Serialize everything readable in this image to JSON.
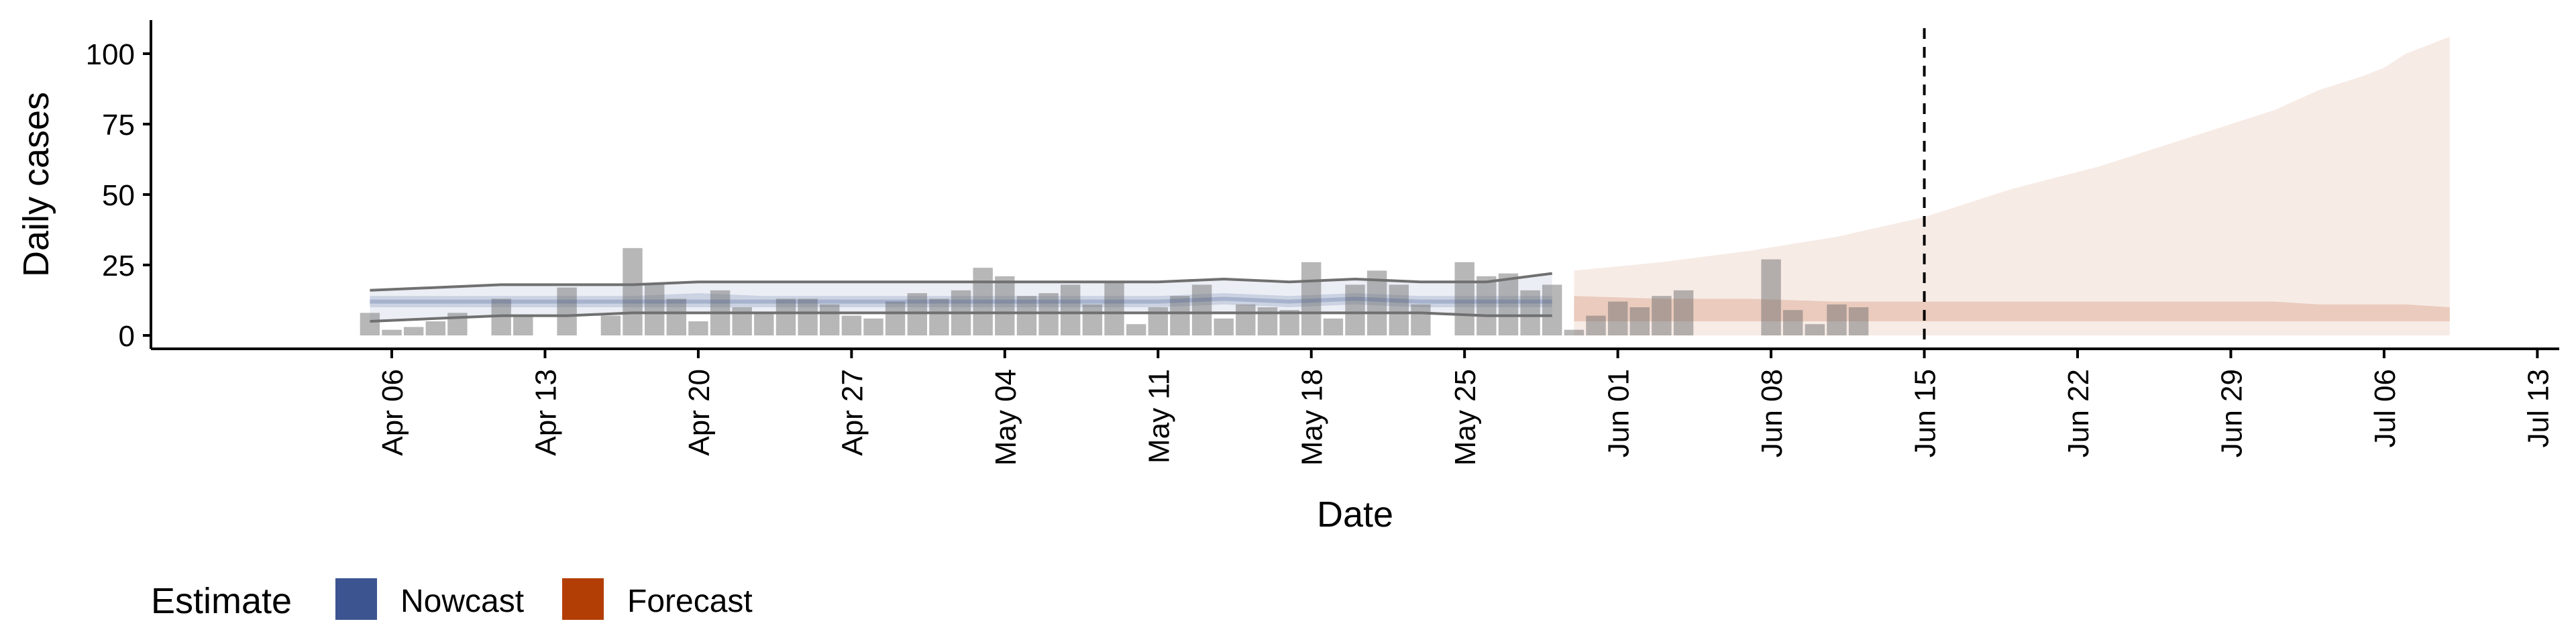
{
  "chart_data": {
    "type": "bar",
    "xlabel": "Date",
    "ylabel": "Daily cases",
    "ylim": [
      0,
      110
    ],
    "yticks": [
      0,
      25,
      50,
      75,
      100
    ],
    "x_tick_labels": [
      "Apr 06",
      "Apr 13",
      "Apr 20",
      "Apr 27",
      "May 04",
      "May 11",
      "May 18",
      "May 25",
      "Jun 01",
      "Jun 08",
      "Jun 15",
      "Jun 22",
      "Jun 29",
      "Jul 06",
      "Jul 13"
    ],
    "x_tick_dates": [
      "2020-04-06",
      "2020-04-13",
      "2020-04-20",
      "2020-04-27",
      "2020-05-04",
      "2020-05-11",
      "2020-05-18",
      "2020-05-25",
      "2020-06-01",
      "2020-06-08",
      "2020-06-15",
      "2020-06-22",
      "2020-06-29",
      "2020-07-06",
      "2020-07-13"
    ],
    "xlim": [
      "2020-03-26",
      "2020-07-14"
    ],
    "forecast_date": "2020-06-15",
    "cases": {
      "dates": [
        "2020-04-05",
        "2020-04-06",
        "2020-04-07",
        "2020-04-08",
        "2020-04-09",
        "2020-04-10",
        "2020-04-11",
        "2020-04-12",
        "2020-04-13",
        "2020-04-14",
        "2020-04-15",
        "2020-04-16",
        "2020-04-17",
        "2020-04-18",
        "2020-04-19",
        "2020-04-20",
        "2020-04-21",
        "2020-04-22",
        "2020-04-23",
        "2020-04-24",
        "2020-04-25",
        "2020-04-26",
        "2020-04-27",
        "2020-04-28",
        "2020-04-29",
        "2020-04-30",
        "2020-05-01",
        "2020-05-02",
        "2020-05-03",
        "2020-05-04",
        "2020-05-05",
        "2020-05-06",
        "2020-05-07",
        "2020-05-08",
        "2020-05-09",
        "2020-05-10",
        "2020-05-11",
        "2020-05-12",
        "2020-05-13",
        "2020-05-14",
        "2020-05-15",
        "2020-05-16",
        "2020-05-17",
        "2020-05-18",
        "2020-05-19",
        "2020-05-20",
        "2020-05-21",
        "2020-05-22",
        "2020-05-23",
        "2020-05-24",
        "2020-05-25",
        "2020-05-26",
        "2020-05-27",
        "2020-05-28",
        "2020-05-29",
        "2020-05-30",
        "2020-05-31",
        "2020-06-01",
        "2020-06-02",
        "2020-06-03",
        "2020-06-04",
        "2020-06-05",
        "2020-06-06",
        "2020-06-07",
        "2020-06-08",
        "2020-06-09",
        "2020-06-10",
        "2020-06-11",
        "2020-06-12"
      ],
      "values": [
        8,
        2,
        3,
        5,
        8,
        0,
        13,
        7,
        0,
        17,
        0,
        7,
        31,
        18,
        13,
        5,
        16,
        10,
        8,
        13,
        13,
        11,
        7,
        6,
        12,
        15,
        13,
        16,
        24,
        21,
        14,
        15,
        18,
        11,
        19,
        4,
        10,
        14,
        18,
        6,
        11,
        10,
        9,
        26,
        6,
        18,
        23,
        18,
        11,
        0,
        26,
        21,
        22,
        16,
        18,
        2,
        7,
        12,
        10,
        14,
        16,
        0,
        0,
        0,
        27,
        9,
        4,
        11,
        10
      ]
    },
    "series": [
      {
        "name": "Nowcast",
        "color": "#3c5591",
        "dates": [
          "2020-04-05",
          "2020-04-08",
          "2020-04-11",
          "2020-04-14",
          "2020-04-17",
          "2020-04-20",
          "2020-04-23",
          "2020-04-26",
          "2020-04-29",
          "2020-05-02",
          "2020-05-05",
          "2020-05-08",
          "2020-05-11",
          "2020-05-14",
          "2020-05-17",
          "2020-05-20",
          "2020-05-23",
          "2020-05-26",
          "2020-05-29"
        ],
        "median": [
          12,
          12,
          12,
          12,
          12,
          12,
          12,
          12,
          12,
          12,
          12,
          12,
          12,
          13,
          12,
          13,
          12,
          12,
          12
        ],
        "lower_50": [
          10,
          10,
          10,
          10,
          10,
          10,
          10,
          10,
          10,
          10,
          10,
          10,
          10,
          11,
          10,
          11,
          10,
          10,
          10
        ],
        "upper_50": [
          14,
          14,
          14,
          14,
          14,
          15,
          14,
          14,
          14,
          14,
          14,
          14,
          14,
          15,
          14,
          15,
          14,
          14,
          14
        ],
        "lower_90": [
          5,
          6,
          7,
          7,
          8,
          8,
          8,
          8,
          8,
          8,
          8,
          8,
          8,
          8,
          8,
          8,
          8,
          7,
          7
        ],
        "upper_90": [
          16,
          17,
          18,
          18,
          18,
          19,
          19,
          19,
          19,
          19,
          19,
          19,
          19,
          20,
          19,
          20,
          19,
          19,
          22
        ]
      },
      {
        "name": "Forecast",
        "color": "#b33e05",
        "dates": [
          "2020-05-30",
          "2020-06-03",
          "2020-06-07",
          "2020-06-11",
          "2020-06-15",
          "2020-06-19",
          "2020-06-23",
          "2020-06-27",
          "2020-07-01",
          "2020-07-03",
          "2020-07-05",
          "2020-07-06",
          "2020-07-07",
          "2020-07-09"
        ],
        "lower_50": [
          5,
          5,
          5,
          5,
          5,
          5,
          5,
          5,
          5,
          5,
          5,
          5,
          5,
          5
        ],
        "upper_50": [
          14,
          13,
          13,
          12,
          12,
          12,
          12,
          12,
          12,
          11,
          11,
          11,
          11,
          10
        ],
        "lower_90": [
          0,
          0,
          0,
          0,
          0,
          0,
          0,
          0,
          0,
          0,
          0,
          0,
          0,
          0
        ],
        "upper_90": [
          23,
          26,
          30,
          35,
          42,
          52,
          60,
          70,
          80,
          87,
          92,
          95,
          100,
          106
        ]
      }
    ],
    "legend": {
      "title": "Estimate",
      "position": "bottom-left",
      "items": [
        {
          "label": "Nowcast",
          "color": "#3c5591"
        },
        {
          "label": "Forecast",
          "color": "#b33e05"
        }
      ]
    },
    "grid": false
  }
}
